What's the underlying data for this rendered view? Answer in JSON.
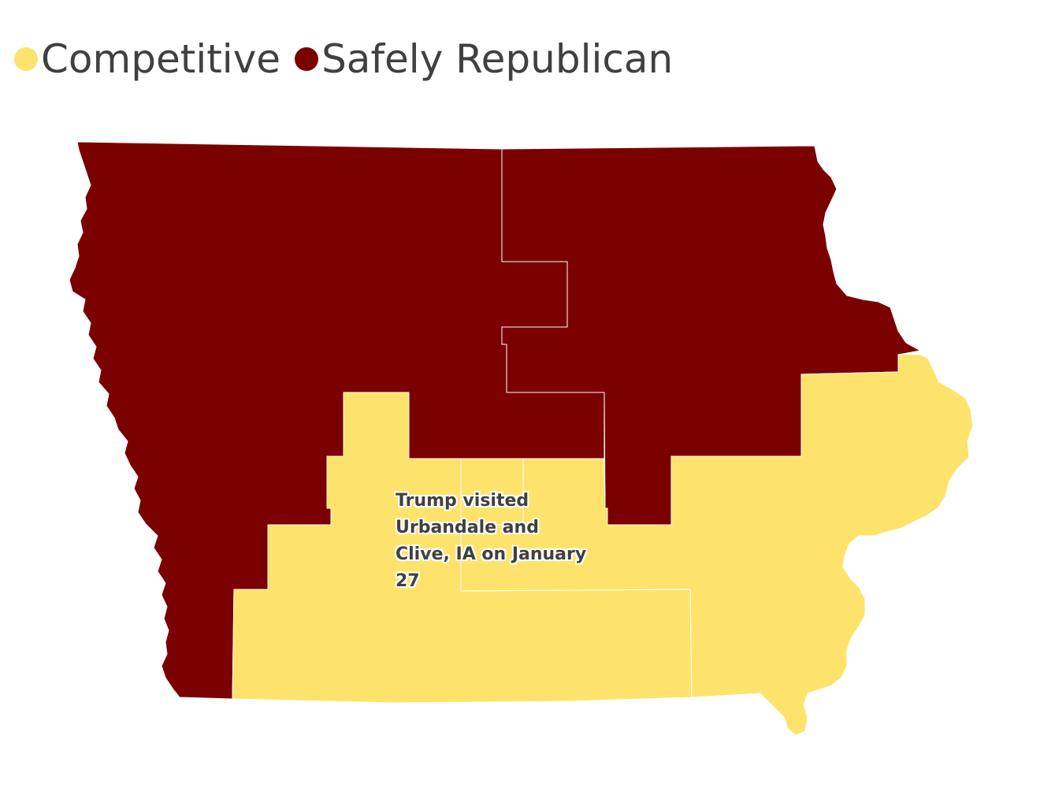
{
  "legend": {
    "items": [
      {
        "label": "Competitive",
        "color": "#fde36b"
      },
      {
        "label": "Safely Republican",
        "color": "#7b0000"
      }
    ]
  },
  "map": {
    "region": "Iowa",
    "districts": [
      {
        "id": "district-4",
        "rating": "Safely Republican",
        "color": "#7b0000"
      },
      {
        "id": "district-1-north",
        "rating": "Safely Republican",
        "color": "#7b0000"
      },
      {
        "id": "district-3",
        "rating": "Competitive",
        "color": "#fde36b"
      },
      {
        "id": "district-2",
        "rating": "Competitive",
        "color": "#fde36b"
      }
    ]
  },
  "annotation": {
    "text": "Trump visited Urbandale and Clive, IA on January 27"
  }
}
